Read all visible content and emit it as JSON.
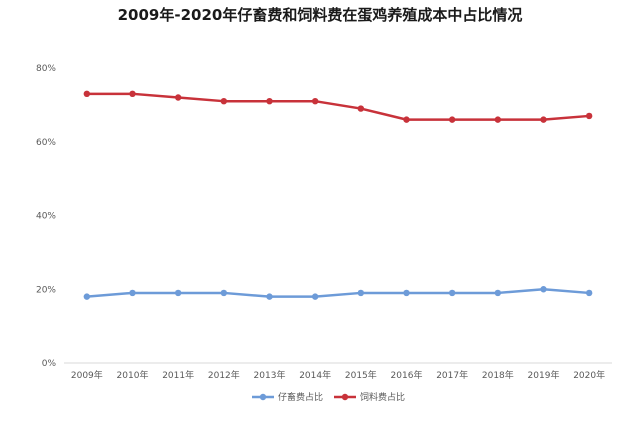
{
  "chart_data": {
    "type": "line",
    "title": "2009年-2020年仔畜费和饲料费在蛋鸡养殖成本中占比情况",
    "xlabel": "",
    "ylabel": "",
    "categories": [
      "2009年",
      "2010年",
      "2011年",
      "2012年",
      "2013年",
      "2014年",
      "2015年",
      "2016年",
      "2017年",
      "2018年",
      "2019年",
      "2020年"
    ],
    "ylim": [
      0,
      80
    ],
    "yticks": [
      "0%",
      "20%",
      "40%",
      "60%",
      "80%"
    ],
    "grid": false,
    "legend_position": "bottom",
    "series": [
      {
        "name": "仔畜费占比",
        "color": "#6d9bd8",
        "values": [
          18,
          19,
          19,
          19,
          18,
          18,
          19,
          19,
          19,
          19,
          20,
          19
        ]
      },
      {
        "name": "饲料费占比",
        "color": "#c8323a",
        "values": [
          73,
          73,
          72,
          71,
          71,
          71,
          69,
          66,
          66,
          66,
          66,
          67
        ]
      }
    ]
  }
}
